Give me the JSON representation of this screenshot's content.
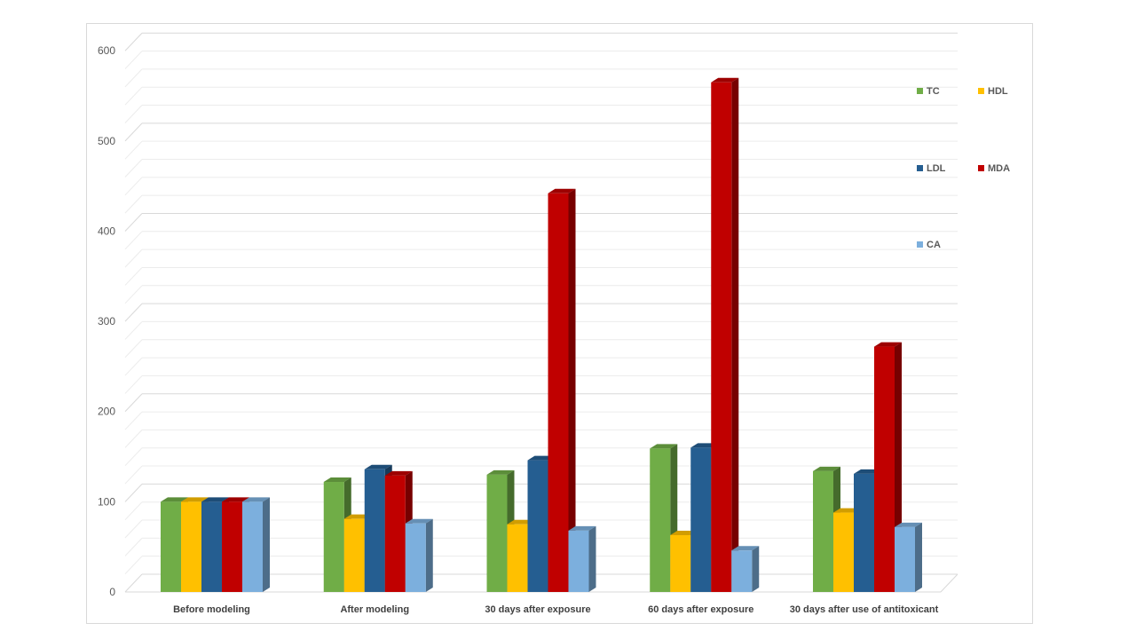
{
  "chart_data": {
    "type": "bar",
    "style": "3d-clustered-column",
    "categories": [
      "Before modeling",
      "After modeling",
      "30 days after exposure",
      "60 days after exposure",
      "30 days after use of antitoxicant"
    ],
    "series": [
      {
        "name": "TC",
        "color": "#70AD47",
        "values": [
          100,
          122,
          130,
          159,
          134
        ]
      },
      {
        "name": "HDL",
        "color": "#FFC000",
        "values": [
          100,
          81,
          75,
          63,
          88
        ]
      },
      {
        "name": "LDL",
        "color": "#255E91",
        "values": [
          100,
          136,
          146,
          160,
          131
        ]
      },
      {
        "name": "MDA",
        "color": "#C00000",
        "values": [
          100,
          129,
          442,
          565,
          272
        ]
      },
      {
        "name": "CA",
        "color": "#7CAFDD",
        "values": [
          100,
          76,
          68,
          46,
          72
        ]
      }
    ],
    "yticks": [
      0,
      100,
      200,
      300,
      400,
      500,
      600
    ],
    "ylim": [
      0,
      600
    ],
    "grid": true,
    "legend_position": "right"
  }
}
